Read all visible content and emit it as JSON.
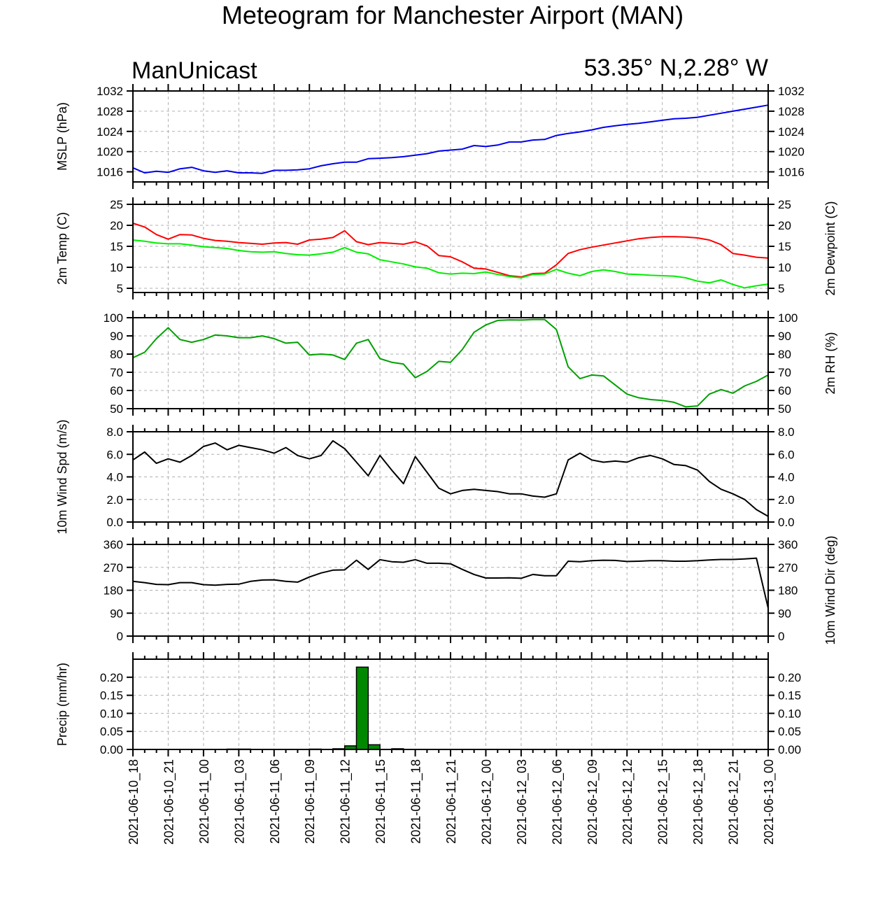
{
  "page": {
    "title": "Meteogram for Manchester Airport (MAN)",
    "left_label": "ManUnicast",
    "right_label": "53.35° N,2.28° W"
  },
  "chart_data": [
    {
      "id": "mslp",
      "type": "line",
      "ylabel": "MSLP (hPa)",
      "ylabel_right": "",
      "ylim": [
        1014,
        1032
      ],
      "yticks": [
        1016,
        1020,
        1024,
        1028,
        1032
      ],
      "tick_labels": [
        "1016",
        "1020",
        "1024",
        "1028",
        "1032"
      ],
      "right_tick_labels": true,
      "grid": true,
      "series": [
        {
          "color": "#0000ee",
          "x": [
            0,
            1,
            2,
            3,
            4,
            5,
            6,
            7,
            8,
            9,
            10,
            11,
            12,
            13,
            14,
            15,
            16,
            17,
            18,
            19,
            20,
            21,
            22,
            23,
            24,
            25,
            26,
            27,
            28,
            29,
            30,
            31,
            32,
            33,
            34,
            35,
            36,
            37,
            38,
            39,
            40,
            41,
            42,
            43,
            44,
            45,
            46,
            47,
            48,
            49,
            50,
            51,
            52,
            53,
            54
          ],
          "values": [
            1016.8,
            1015.8,
            1016.1,
            1015.9,
            1016.6,
            1016.9,
            1016.2,
            1015.9,
            1016.2,
            1015.8,
            1015.8,
            1015.7,
            1016.3,
            1016.3,
            1016.4,
            1016.6,
            1017.2,
            1017.6,
            1017.9,
            1017.9,
            1018.6,
            1018.7,
            1018.8,
            1019.0,
            1019.3,
            1019.6,
            1020.1,
            1020.3,
            1020.5,
            1021.2,
            1021.0,
            1021.3,
            1021.9,
            1021.9,
            1022.3,
            1022.4,
            1023.2,
            1023.6,
            1023.9,
            1024.3,
            1024.8,
            1025.1,
            1025.4,
            1025.6,
            1025.9,
            1026.2,
            1026.5,
            1026.6,
            1026.8,
            1027.2,
            1027.6,
            1028.0,
            1028.4,
            1028.8,
            1029.2
          ]
        }
      ]
    },
    {
      "id": "temp",
      "type": "line",
      "ylabel": "2m Temp (C)",
      "ylabel_right": "2m Dewpoint (C)",
      "ylim": [
        4,
        25
      ],
      "yticks": [
        5,
        10,
        15,
        20,
        25
      ],
      "tick_labels": [
        "5",
        "10",
        "15",
        "20",
        "25"
      ],
      "right_tick_labels": true,
      "grid": true,
      "series": [
        {
          "color": "#ff0000",
          "x": [
            0,
            1,
            2,
            3,
            4,
            5,
            6,
            7,
            8,
            9,
            10,
            11,
            12,
            13,
            14,
            15,
            16,
            17,
            18,
            19,
            20,
            21,
            22,
            23,
            24,
            25,
            26,
            27,
            28,
            29,
            30,
            31,
            32,
            33,
            34,
            35,
            36,
            37,
            38,
            39,
            40,
            41,
            42,
            43,
            44,
            45,
            46,
            47,
            48,
            49,
            50,
            51,
            52,
            53,
            54
          ],
          "values": [
            20.5,
            19.6,
            17.8,
            16.7,
            17.8,
            17.7,
            16.9,
            16.4,
            16.2,
            15.9,
            15.7,
            15.5,
            15.8,
            15.9,
            15.5,
            16.5,
            16.7,
            17.1,
            18.7,
            16.1,
            15.4,
            15.9,
            15.7,
            15.5,
            16.1,
            15.1,
            12.8,
            12.5,
            11.3,
            9.8,
            9.6,
            8.8,
            8.0,
            7.7,
            8.5,
            8.6,
            10.6,
            13.3,
            14.2,
            14.8,
            15.3,
            15.8,
            16.3,
            16.8,
            17.1,
            17.3,
            17.3,
            17.2,
            17.0,
            16.5,
            15.4,
            13.3,
            12.9,
            12.4,
            12.2
          ]
        },
        {
          "color": "#00ee00",
          "x": [
            0,
            1,
            2,
            3,
            4,
            5,
            6,
            7,
            8,
            9,
            10,
            11,
            12,
            13,
            14,
            15,
            16,
            17,
            18,
            19,
            20,
            21,
            22,
            23,
            24,
            25,
            26,
            27,
            28,
            29,
            30,
            31,
            32,
            33,
            34,
            35,
            36,
            37,
            38,
            39,
            40,
            41,
            42,
            43,
            44,
            45,
            46,
            47,
            48,
            49,
            50,
            51,
            52,
            53,
            54
          ],
          "values": [
            16.5,
            16.2,
            15.8,
            15.6,
            15.6,
            15.3,
            14.9,
            14.7,
            14.5,
            14.0,
            13.7,
            13.6,
            13.7,
            13.3,
            13.0,
            12.9,
            13.2,
            13.6,
            14.7,
            13.6,
            13.2,
            11.8,
            11.3,
            10.8,
            10.1,
            9.8,
            8.7,
            8.4,
            8.6,
            8.5,
            8.9,
            8.3,
            7.8,
            7.5,
            8.3,
            8.4,
            9.5,
            8.6,
            8.0,
            9.0,
            9.4,
            9.0,
            8.4,
            8.3,
            8.1,
            8.0,
            7.9,
            7.5,
            6.7,
            6.3,
            7.0,
            5.9,
            5.1,
            5.6,
            6.0
          ]
        }
      ]
    },
    {
      "id": "rh",
      "type": "line",
      "ylabel": "",
      "ylabel_right": "2m RH (%)",
      "ylim": [
        50,
        100
      ],
      "yticks": [
        50,
        60,
        70,
        80,
        90,
        100
      ],
      "tick_labels": [
        "50",
        "60",
        "70",
        "80",
        "90",
        "100"
      ],
      "right_tick_labels": true,
      "grid": true,
      "series": [
        {
          "color": "#00a000",
          "x": [
            0,
            1,
            2,
            3,
            4,
            5,
            6,
            7,
            8,
            9,
            10,
            11,
            12,
            13,
            14,
            15,
            16,
            17,
            18,
            19,
            20,
            21,
            22,
            23,
            24,
            25,
            26,
            27,
            28,
            29,
            30,
            31,
            32,
            33,
            34,
            35,
            36,
            37,
            38,
            39,
            40,
            41,
            42,
            43,
            44,
            45,
            46,
            47,
            48,
            49,
            50,
            51,
            52,
            53,
            54
          ],
          "values": [
            78,
            81,
            88.5,
            94.5,
            88,
            86.5,
            88,
            90.5,
            90,
            89,
            89,
            90,
            88.5,
            86,
            86.5,
            79.5,
            80,
            79.5,
            77,
            86,
            88,
            77.5,
            75.5,
            74.5,
            67,
            70.5,
            76,
            75.5,
            82.5,
            92,
            96,
            98.5,
            98.8,
            98.7,
            99,
            99,
            93.5,
            73,
            66.5,
            68.5,
            68,
            63,
            58,
            56,
            55,
            54.5,
            53.5,
            51,
            51.5,
            58,
            60.5,
            58.5,
            62.5,
            65,
            68.5
          ]
        }
      ]
    },
    {
      "id": "wspd",
      "type": "line",
      "ylabel": "10m Wind Spd (m/s)",
      "ylabel_right": "",
      "ylim": [
        0,
        8
      ],
      "yticks": [
        0,
        2,
        4,
        6,
        8
      ],
      "tick_labels": [
        "0.0",
        "2.0",
        "4.0",
        "6.0",
        "8.0"
      ],
      "right_tick_labels": true,
      "grid": true,
      "series": [
        {
          "color": "#000000",
          "x": [
            0,
            1,
            2,
            3,
            4,
            5,
            6,
            7,
            8,
            9,
            10,
            11,
            12,
            13,
            14,
            15,
            16,
            17,
            18,
            19,
            20,
            21,
            22,
            23,
            24,
            25,
            26,
            27,
            28,
            29,
            30,
            31,
            32,
            33,
            34,
            35,
            36,
            37,
            38,
            39,
            40,
            41,
            42,
            43,
            44,
            45,
            46,
            47,
            48,
            49,
            50,
            51,
            52,
            53,
            54
          ],
          "values": [
            5.5,
            6.2,
            5.2,
            5.6,
            5.3,
            5.9,
            6.7,
            7.0,
            6.4,
            6.8,
            6.6,
            6.4,
            6.1,
            6.6,
            5.9,
            5.6,
            5.9,
            7.2,
            6.5,
            5.3,
            4.1,
            5.9,
            4.6,
            3.4,
            5.8,
            4.4,
            3.0,
            2.5,
            2.8,
            2.9,
            2.8,
            2.7,
            2.5,
            2.5,
            2.3,
            2.2,
            2.5,
            5.5,
            6.1,
            5.5,
            5.3,
            5.4,
            5.3,
            5.7,
            5.9,
            5.6,
            5.1,
            5.0,
            4.6,
            3.6,
            2.9,
            2.5,
            2.0,
            1.1,
            0.5
          ]
        }
      ]
    },
    {
      "id": "wdir",
      "type": "line",
      "ylabel": "",
      "ylabel_right": "10m Wind Dir (deg)",
      "ylim": [
        0,
        360
      ],
      "yticks": [
        0,
        90,
        180,
        270,
        360
      ],
      "tick_labels": [
        "0",
        "90",
        "180",
        "270",
        "360"
      ],
      "right_tick_labels": true,
      "grid": true,
      "series": [
        {
          "color": "#000000",
          "x": [
            0,
            1,
            2,
            3,
            4,
            5,
            6,
            7,
            8,
            9,
            10,
            11,
            12,
            13,
            14,
            15,
            16,
            17,
            18,
            19,
            20,
            21,
            22,
            23,
            24,
            25,
            26,
            27,
            28,
            29,
            30,
            31,
            32,
            33,
            34,
            35,
            36,
            37,
            38,
            39,
            40,
            41,
            42,
            43,
            44,
            45,
            46,
            47,
            48,
            49,
            50,
            51,
            52,
            53,
            54
          ],
          "values": [
            215,
            210,
            203,
            202,
            210,
            210,
            202,
            200,
            203,
            204,
            215,
            220,
            221,
            215,
            212,
            232,
            248,
            259,
            260,
            298,
            262,
            300,
            292,
            290,
            300,
            286,
            286,
            284,
            262,
            242,
            228,
            228,
            229,
            227,
            242,
            237,
            237,
            294,
            292,
            296,
            298,
            297,
            293,
            294,
            296,
            296,
            294,
            294,
            296,
            299,
            301,
            301,
            303,
            306,
            110
          ]
        }
      ]
    },
    {
      "id": "precip",
      "type": "bar",
      "ylabel": "Precip (mm/hr)",
      "ylabel_right": "",
      "ylim": [
        0,
        0.25
      ],
      "yticks": [
        0,
        0.05,
        0.1,
        0.15,
        0.2
      ],
      "tick_labels": [
        "0.00",
        "0.05",
        "0.10",
        "0.15",
        "0.20"
      ],
      "right_tick_labels": true,
      "grid": true,
      "bar_color": "#008800",
      "x": [
        8,
        9,
        15,
        17,
        18,
        19,
        20,
        22
      ],
      "values": [
        0.001,
        0.001,
        0.001,
        0.002,
        0.01,
        0.228,
        0.013,
        0.002
      ]
    }
  ],
  "x_axis": {
    "tick_labels": [
      "2021-06-10_18",
      "2021-06-10_21",
      "2021-06-11_00",
      "2021-06-11_03",
      "2021-06-11_06",
      "2021-06-11_09",
      "2021-06-11_12",
      "2021-06-11_15",
      "2021-06-11_18",
      "2021-06-11_21",
      "2021-06-12_00",
      "2021-06-12_03",
      "2021-06-12_06",
      "2021-06-12_09",
      "2021-06-12_12",
      "2021-06-12_15",
      "2021-06-12_18",
      "2021-06-12_21",
      "2021-06-13_00"
    ],
    "hours_per_step": 1,
    "range_hours": [
      0,
      54
    ],
    "major_every_hours": 3
  }
}
